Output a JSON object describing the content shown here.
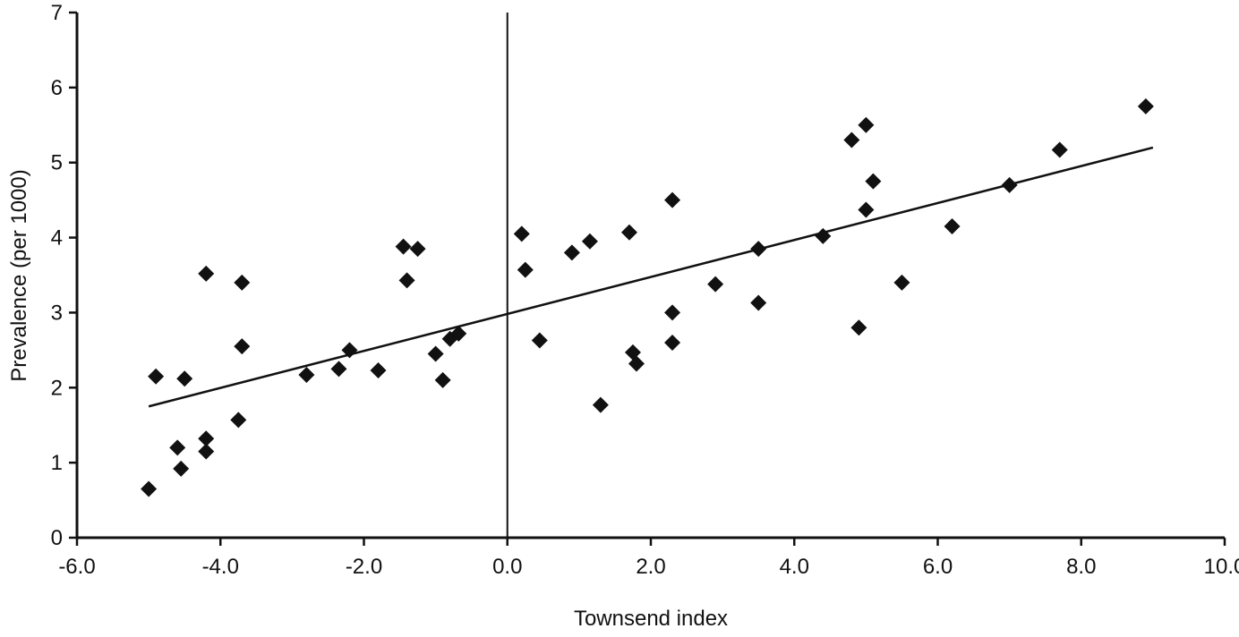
{
  "chart_data": {
    "type": "scatter",
    "title": "",
    "xlabel": "Townsend index",
    "ylabel": "Prevalence (per 1000)",
    "xlim": [
      -6.0,
      10.0
    ],
    "ylim": [
      0,
      7
    ],
    "grid": false,
    "legend": "none",
    "marker": "diamond",
    "color": "#111111",
    "x_ticks": [
      -6.0,
      -4.0,
      -2.0,
      0.0,
      2.0,
      4.0,
      6.0,
      8.0,
      10.0
    ],
    "x_tick_labels": [
      "-6.0",
      "-4.0",
      "-2.0",
      "0.0",
      "2.0",
      "4.0",
      "6.0",
      "8.0",
      "10.0"
    ],
    "y_ticks": [
      0,
      1,
      2,
      3,
      4,
      5,
      6,
      7
    ],
    "y_tick_labels": [
      "0",
      "1",
      "2",
      "3",
      "4",
      "5",
      "6",
      "7"
    ],
    "reference_line_x": 0.0,
    "trend_line": {
      "x1": -5.0,
      "y1": 1.75,
      "x2": 9.0,
      "y2": 5.2
    },
    "points": [
      [
        -5.0,
        0.65
      ],
      [
        -4.9,
        2.15
      ],
      [
        -4.6,
        1.2
      ],
      [
        -4.55,
        0.92
      ],
      [
        -4.5,
        2.12
      ],
      [
        -4.2,
        1.32
      ],
      [
        -4.2,
        1.15
      ],
      [
        -4.2,
        3.52
      ],
      [
        -3.75,
        1.57
      ],
      [
        -3.7,
        2.55
      ],
      [
        -3.7,
        3.4
      ],
      [
        -2.8,
        2.17
      ],
      [
        -2.35,
        2.25
      ],
      [
        -2.2,
        2.5
      ],
      [
        -1.8,
        2.23
      ],
      [
        -1.45,
        3.88
      ],
      [
        -1.4,
        3.43
      ],
      [
        -1.25,
        3.85
      ],
      [
        -1.0,
        2.45
      ],
      [
        -0.9,
        2.1
      ],
      [
        -0.8,
        2.65
      ],
      [
        -0.68,
        2.72
      ],
      [
        0.2,
        4.05
      ],
      [
        0.25,
        3.57
      ],
      [
        0.45,
        2.63
      ],
      [
        0.9,
        3.8
      ],
      [
        1.15,
        3.95
      ],
      [
        1.3,
        1.77
      ],
      [
        1.7,
        4.07
      ],
      [
        1.75,
        2.47
      ],
      [
        1.8,
        2.32
      ],
      [
        2.3,
        3.0
      ],
      [
        2.3,
        2.6
      ],
      [
        2.3,
        4.5
      ],
      [
        2.9,
        3.38
      ],
      [
        3.5,
        3.85
      ],
      [
        3.5,
        3.13
      ],
      [
        4.4,
        4.02
      ],
      [
        4.8,
        5.3
      ],
      [
        4.9,
        2.8
      ],
      [
        5.0,
        5.5
      ],
      [
        5.0,
        4.37
      ],
      [
        5.1,
        4.75
      ],
      [
        5.5,
        3.4
      ],
      [
        6.2,
        4.15
      ],
      [
        7.0,
        4.7
      ],
      [
        7.7,
        5.17
      ],
      [
        8.9,
        5.75
      ]
    ]
  }
}
